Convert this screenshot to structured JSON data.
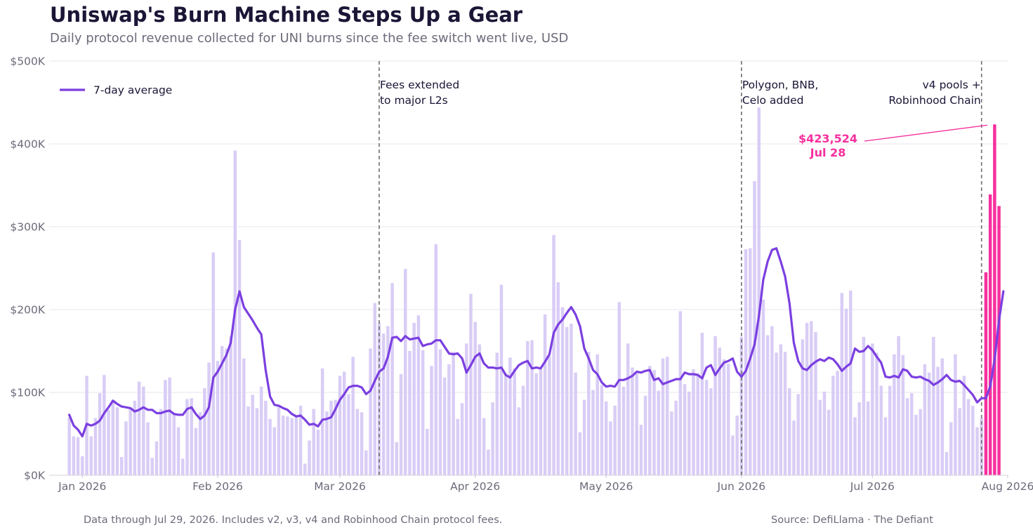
{
  "header": {
    "title": "Uniswap's Burn Machine Steps Up a Gear",
    "subtitle": "Daily protocol revenue collected for UNI burns since the fee switch went live, USD"
  },
  "footer": {
    "note": "Data through Jul 29, 2026. Includes v2, v3, v4 and Robinhood Chain protocol fees.",
    "source": "Source: DefiLlama  ·  The Defiant"
  },
  "colors": {
    "bar": "#d9cdf6",
    "bar_highlight": "#f72f9e",
    "line": "#7b3fe0",
    "annotation_line": "#6e6e6e",
    "grid": "#e8e6ee"
  },
  "chart_data": {
    "type": "bar",
    "title": "Uniswap's Burn Machine Steps Up a Gear",
    "subtitle": "Daily protocol revenue collected for UNI burns since the fee switch went live, USD",
    "start_date": "2025-12-29",
    "end_date": "2026-07-29",
    "xlim": [
      "2025-12-26",
      "2026-08-01"
    ],
    "ylim": [
      0,
      500000
    ],
    "yticks": [
      0,
      100000,
      200000,
      300000,
      400000,
      500000
    ],
    "ytick_labels": [
      "$0K",
      "$100K",
      "$200K",
      "$300K",
      "$400K",
      "$500K"
    ],
    "xticks": [
      "2026-01-01",
      "2026-02-01",
      "2026-03-01",
      "2026-04-01",
      "2026-05-01",
      "2026-06-01",
      "2026-07-01",
      "2026-08-01"
    ],
    "xtick_labels": [
      "Jan 2026",
      "Feb 2026",
      "Mar 2026",
      "Apr 2026",
      "May 2026",
      "Jun 2026",
      "Jul 2026",
      "Aug 2026"
    ],
    "grid": "horizontal",
    "legend": {
      "position": "top-left",
      "entries": [
        "7-day average"
      ]
    },
    "daily_revenue": [
      70000,
      47000,
      46000,
      23000,
      120000,
      47000,
      69000,
      99000,
      121000,
      79000,
      91000,
      82000,
      22000,
      65000,
      82000,
      90000,
      113000,
      107000,
      64000,
      21000,
      41000,
      80000,
      115000,
      118000,
      75000,
      58000,
      20000,
      92000,
      93000,
      57000,
      76000,
      105000,
      136000,
      269000,
      138000,
      156000,
      153000,
      168000,
      392000,
      284000,
      141000,
      83000,
      97000,
      81000,
      107000,
      90000,
      68000,
      58000,
      84000,
      72000,
      71000,
      69000,
      71000,
      84000,
      14000,
      42000,
      80000,
      55000,
      129000,
      77000,
      90000,
      91000,
      120000,
      125000,
      98000,
      143000,
      80000,
      76000,
      30000,
      153000,
      208000,
      184000,
      171000,
      180000,
      232000,
      40000,
      122000,
      249000,
      150000,
      184000,
      193000,
      151000,
      56000,
      132000,
      279000,
      152000,
      118000,
      134000,
      149000,
      68000,
      87000,
      159000,
      219000,
      185000,
      158000,
      69000,
      31000,
      88000,
      148000,
      230000,
      123000,
      142000,
      129000,
      82000,
      108000,
      162000,
      163000,
      123000,
      128000,
      194000,
      144000,
      290000,
      233000,
      203000,
      179000,
      183000,
      124000,
      52000,
      91000,
      149000,
      103000,
      146000,
      109000,
      89000,
      65000,
      84000,
      209000,
      107000,
      159000,
      130000,
      123000,
      61000,
      96000,
      132000,
      127000,
      102000,
      141000,
      143000,
      77000,
      90000,
      198000,
      110000,
      101000,
      128000,
      123000,
      172000,
      115000,
      105000,
      168000,
      154000,
      140000,
      135000,
      48000,
      72000,
      167000,
      273000,
      274000,
      355000,
      444000,
      212000,
      169000,
      180000,
      148000,
      158000,
      149000,
      105000,
      66000,
      98000,
      164000,
      184000,
      186000,
      173000,
      91000,
      101000,
      79000,
      120000,
      126000,
      220000,
      201000,
      223000,
      70000,
      88000,
      167000,
      89000,
      159000,
      148000,
      108000,
      70000,
      108000,
      146000,
      168000,
      145000,
      93000,
      99000,
      73000,
      80000,
      134000,
      124000,
      167000,
      131000,
      141000,
      28000,
      64000,
      146000,
      81000,
      120000,
      92000,
      84000,
      58000,
      69000,
      245000,
      339000,
      423524,
      325000
    ],
    "highlight_last_n": 4,
    "seven_day_average": [
      73000,
      60000,
      55000,
      47000,
      62000,
      60000,
      62000,
      66000,
      75000,
      82000,
      90000,
      86000,
      83000,
      82000,
      81000,
      77000,
      79000,
      82000,
      79000,
      79000,
      75000,
      75000,
      77000,
      78000,
      74000,
      73000,
      73000,
      80000,
      82000,
      74000,
      68000,
      72000,
      82000,
      118000,
      125000,
      135000,
      145000,
      160000,
      200000,
      222000,
      203000,
      195000,
      187000,
      178000,
      170000,
      127000,
      95000,
      85000,
      84000,
      81000,
      79000,
      74000,
      71000,
      72000,
      67000,
      61000,
      62000,
      59000,
      67000,
      68000,
      70000,
      80000,
      91000,
      98000,
      106000,
      108000,
      108000,
      106000,
      98000,
      102000,
      114000,
      125000,
      129000,
      143000,
      166000,
      167000,
      162000,
      168000,
      164000,
      165000,
      166000,
      156000,
      158000,
      159000,
      163000,
      163000,
      155000,
      147000,
      146000,
      147000,
      141000,
      124000,
      133000,
      143000,
      147000,
      135000,
      130000,
      130000,
      129000,
      130000,
      121000,
      118000,
      126000,
      133000,
      136000,
      138000,
      129000,
      130000,
      129000,
      137000,
      146000,
      172000,
      182000,
      188000,
      196000,
      203000,
      194000,
      180000,
      153000,
      141000,
      127000,
      122000,
      112000,
      107000,
      108000,
      107000,
      115000,
      115000,
      117000,
      120000,
      125000,
      124000,
      126000,
      127000,
      115000,
      117000,
      110000,
      112000,
      114000,
      116000,
      116000,
      124000,
      122000,
      122000,
      121000,
      117000,
      130000,
      133000,
      121000,
      129000,
      136000,
      138000,
      141000,
      125000,
      119000,
      126000,
      141000,
      158000,
      192000,
      236000,
      258000,
      272000,
      274000,
      258000,
      240000,
      208000,
      160000,
      138000,
      129000,
      127000,
      133000,
      137000,
      140000,
      138000,
      142000,
      140000,
      134000,
      126000,
      131000,
      135000,
      153000,
      149000,
      150000,
      156000,
      151000,
      143000,
      136000,
      119000,
      118000,
      120000,
      118000,
      128000,
      126000,
      119000,
      118000,
      119000,
      116000,
      114000,
      109000,
      112000,
      116000,
      121000,
      115000,
      113000,
      114000,
      109000,
      103000,
      97000,
      88000,
      93000,
      93000,
      107000,
      140000,
      187000,
      222000
    ],
    "annotations": [
      {
        "date": "2026-03-10",
        "lines": [
          "Fees extended",
          "to major L2s"
        ],
        "align": "left"
      },
      {
        "date": "2026-06-01",
        "lines": [
          "Polygon, BNB,",
          "Celo added"
        ],
        "align": "left"
      },
      {
        "date": "2026-07-26",
        "lines": [
          "v4 pools +",
          "Robinhood Chain"
        ],
        "align": "right"
      }
    ],
    "peak_label": {
      "date": "2026-07-28",
      "value": 423524,
      "lines": [
        "$423,524",
        "Jul 28"
      ]
    }
  }
}
